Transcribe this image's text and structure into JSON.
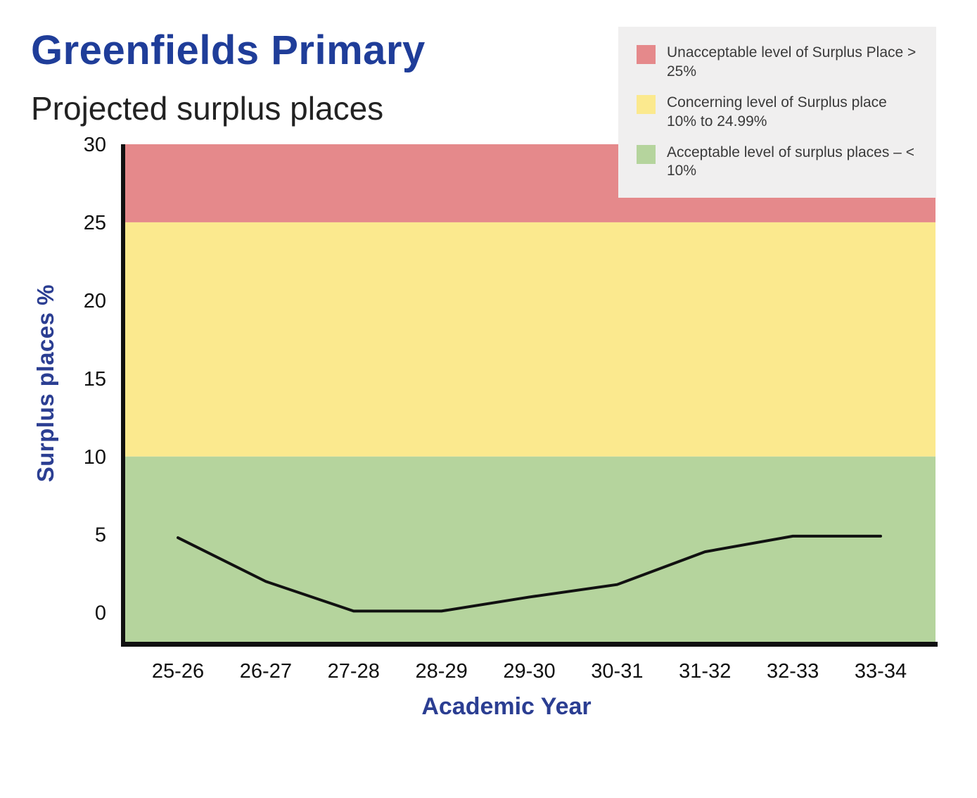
{
  "header": {
    "title": "Greenfields Primary",
    "subtitle": "Projected surplus places"
  },
  "legend": {
    "items": [
      {
        "label": "Unacceptable level of Surplus Place > 25%",
        "color": "#e5898b"
      },
      {
        "label": "Concerning level of Surplus place 10% to 24.99%",
        "color": "#fbe98e"
      },
      {
        "label": "Acceptable level of surplus places – < 10%",
        "color": "#b5d49d"
      }
    ]
  },
  "chart_data": {
    "type": "line",
    "title": "Greenfields Primary — Projected surplus places",
    "xlabel": "Academic Year",
    "ylabel": "Surplus places %",
    "categories": [
      "25-26",
      "26-27",
      "27-28",
      "28-29",
      "29-30",
      "30-31",
      "31-32",
      "32-33",
      "33-34"
    ],
    "values": [
      4.8,
      2.0,
      0.1,
      0.1,
      1.0,
      1.8,
      3.9,
      4.9,
      4.9
    ],
    "ylim": [
      -2,
      30
    ],
    "yticks": [
      0,
      5,
      10,
      15,
      20,
      25,
      30
    ],
    "bands": [
      {
        "name": "unacceptable",
        "from": 25,
        "to": 30,
        "color": "#e5898b"
      },
      {
        "name": "concerning",
        "from": 10,
        "to": 25,
        "color": "#fbe98e"
      },
      {
        "name": "acceptable",
        "from": -2,
        "to": 10,
        "color": "#b5d49d"
      }
    ],
    "line_color": "#111111",
    "grid": false,
    "legend_position": "top-right"
  }
}
